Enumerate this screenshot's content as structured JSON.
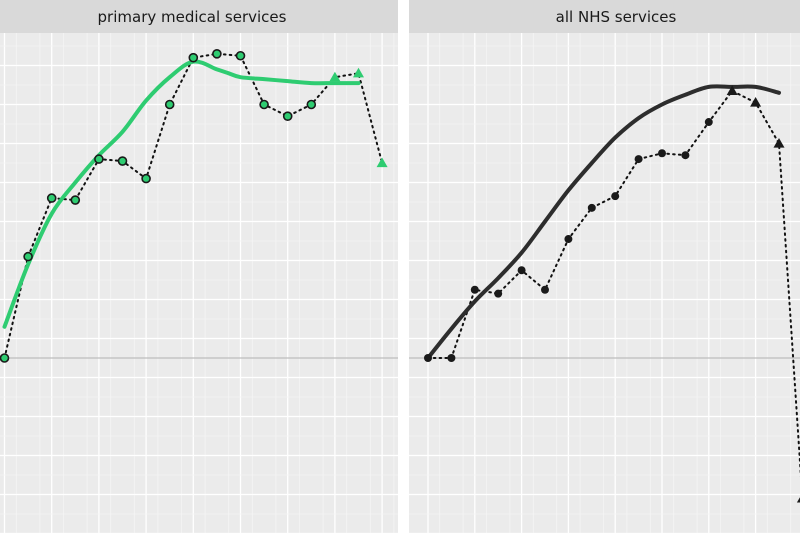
{
  "chart_data": [
    {
      "type": "line",
      "title": "primary medical services",
      "xlabel": "",
      "ylabel": "",
      "x": [
        1,
        2,
        3,
        4,
        5,
        6,
        7,
        8,
        9,
        10,
        11,
        12,
        13,
        14,
        15,
        16,
        17
      ],
      "xlim": [
        1,
        17.85
      ],
      "ylim": [
        -4.5,
        8.0
      ],
      "zero_line": 0,
      "grid": true,
      "series": [
        {
          "kind": "observed",
          "values": [
            0.0,
            2.6,
            4.1,
            4.05,
            5.1,
            5.05,
            4.6,
            6.5,
            7.7,
            7.8,
            7.75,
            6.5,
            6.2,
            6.5,
            7.2,
            7.3,
            5.0
          ],
          "marker_shape": [
            "circle",
            "circle",
            "circle",
            "circle",
            "circle",
            "circle",
            "circle",
            "circle",
            "circle",
            "circle",
            "circle",
            "circle",
            "circle",
            "circle",
            "triangle",
            "triangle",
            "triangle"
          ],
          "color": "#2ecc71"
        },
        {
          "kind": "smoothed",
          "x": [
            1,
            2,
            3,
            4,
            5,
            6,
            7,
            8,
            9,
            10,
            10.5,
            11,
            12,
            13,
            14,
            15,
            16
          ],
          "values": [
            0.8,
            2.4,
            3.7,
            4.5,
            5.2,
            5.8,
            6.6,
            7.2,
            7.6,
            7.4,
            7.3,
            7.2,
            7.15,
            7.1,
            7.05,
            7.05,
            7.05
          ],
          "color": "#2ecc71"
        }
      ]
    },
    {
      "type": "line",
      "title": "all NHS services",
      "xlabel": "",
      "ylabel": "",
      "x": [
        1,
        2,
        3,
        4,
        5,
        6,
        7,
        8,
        9,
        10,
        11,
        12,
        13,
        14,
        15,
        16,
        17
      ],
      "xlim": [
        1,
        17.85
      ],
      "ylim": [
        -4.5,
        8.0
      ],
      "zero_line": 0,
      "grid": true,
      "series": [
        {
          "kind": "observed",
          "values": [
            0.0,
            0.0,
            1.75,
            1.65,
            2.25,
            1.75,
            3.05,
            3.85,
            4.15,
            5.1,
            5.25,
            5.2,
            6.05,
            6.85,
            6.55,
            5.5,
            -3.6
          ],
          "marker_shape": [
            "circle",
            "circle",
            "circle",
            "circle",
            "circle",
            "circle",
            "circle",
            "circle",
            "circle",
            "circle",
            "circle",
            "circle",
            "circle",
            "triangle",
            "triangle",
            "triangle",
            "triangle"
          ],
          "color": "#1a1a1a"
        },
        {
          "kind": "smoothed",
          "x": [
            1,
            2,
            3,
            4,
            5,
            6,
            7,
            8,
            9,
            10,
            11,
            12,
            13,
            14,
            15,
            16
          ],
          "values": [
            0.0,
            0.75,
            1.45,
            2.05,
            2.7,
            3.5,
            4.3,
            5.0,
            5.65,
            6.15,
            6.5,
            6.75,
            6.95,
            6.95,
            6.95,
            6.8
          ],
          "color": "#2d2d2d"
        }
      ]
    }
  ]
}
